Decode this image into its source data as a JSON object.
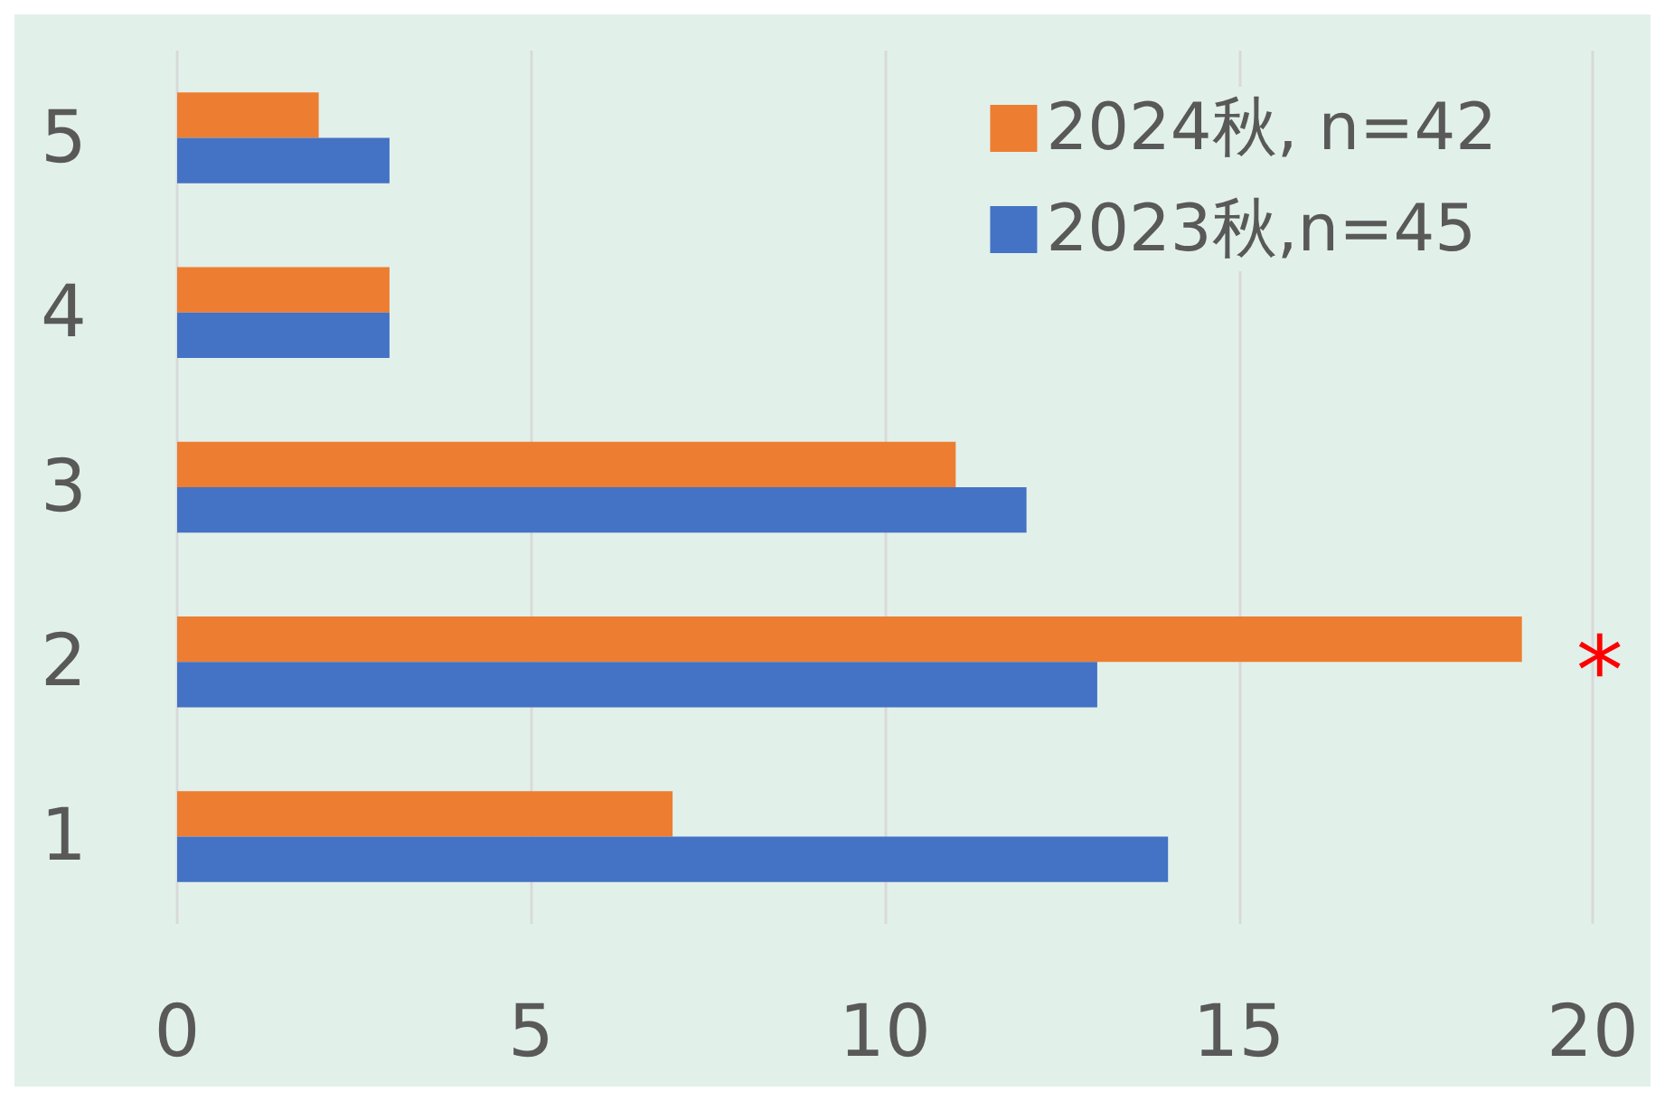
{
  "chart_data": {
    "type": "bar",
    "orientation": "horizontal",
    "categories": [
      "5",
      "4",
      "3",
      "2",
      "1"
    ],
    "series": [
      {
        "name": "2024秋, n=42",
        "color": "#ed7d31",
        "values": [
          2,
          3,
          11,
          19,
          7
        ]
      },
      {
        "name": "2023秋,n=45",
        "color": "#4472c4",
        "values": [
          3,
          3,
          12,
          13,
          14
        ]
      }
    ],
    "xlim": [
      0,
      20
    ],
    "xticks": [
      0,
      5,
      10,
      15,
      20
    ],
    "grid": "x",
    "legend": "top right",
    "annotations": [
      {
        "text": "*",
        "x": 19,
        "y": "2"
      }
    ]
  }
}
